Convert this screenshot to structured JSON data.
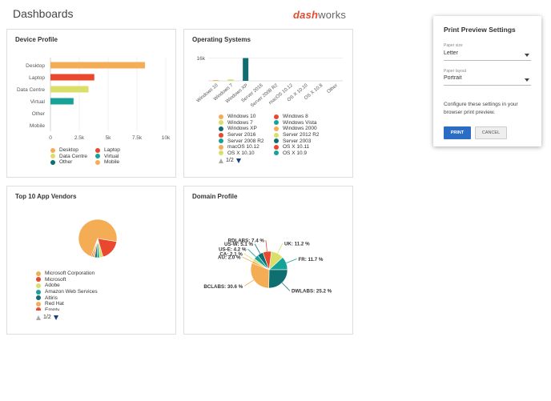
{
  "page": {
    "title": "Dashboards"
  },
  "logo": {
    "part1": "dash",
    "part2": "works"
  },
  "cards": {
    "device_profile": {
      "title": "Device Profile"
    },
    "operating_systems": {
      "title": "Operating Systems",
      "pager": "1/2"
    },
    "app_vendors": {
      "title": "Top 10 App Vendors",
      "pager": "1/2"
    },
    "domain_profile": {
      "title": "Domain Profile"
    }
  },
  "chart_data": [
    {
      "type": "bar",
      "orientation": "horizontal",
      "title": "Device Profile",
      "categories": [
        "Desktop",
        "Laptop",
        "Data Centre",
        "Virtual",
        "Other",
        "Mobile"
      ],
      "values": [
        8200,
        3800,
        3300,
        2000,
        0,
        0
      ],
      "colors": [
        "#f4ad54",
        "#e9472e",
        "#dadf6a",
        "#17a297",
        "#0f6e6f",
        "#f4ad54"
      ],
      "xlim": [
        0,
        10000
      ],
      "xticks": [
        "0",
        "2.5k",
        "5k",
        "7.5k",
        "10k"
      ],
      "legend": [
        {
          "label": "Desktop",
          "color": "#f4ad54"
        },
        {
          "label": "Laptop",
          "color": "#e9472e"
        },
        {
          "label": "Data Centre",
          "color": "#dadf6a"
        },
        {
          "label": "Virtual",
          "color": "#17a297"
        },
        {
          "label": "Other",
          "color": "#0f6e6f"
        },
        {
          "label": "Mobile",
          "color": "#f4ad54"
        }
      ]
    },
    {
      "type": "bar",
      "title": "Operating Systems",
      "categories": [
        "Windows 10",
        "Windows 7",
        "Windows XP",
        "Server 2016",
        "Server 2008 R2",
        "macOS 10.12",
        "OS X 10.10",
        "OS X 10.8",
        "Other"
      ],
      "values": [
        500,
        1000,
        16000,
        0,
        0,
        0,
        0,
        0,
        0
      ],
      "colors": [
        "#f4ad54",
        "#dadf6a",
        "#0f6e6f",
        "#e9472e",
        "#0f6e6f",
        "#f4ad54",
        "#dadf6a",
        "#17a297",
        "#0f6e6f"
      ],
      "ylim": [
        0,
        18000
      ],
      "yticks": [
        "16k"
      ],
      "legend": [
        {
          "label": "Windows 10",
          "color": "#f4ad54"
        },
        {
          "label": "Windows 8",
          "color": "#e9472e"
        },
        {
          "label": "Windows 7",
          "color": "#dadf6a"
        },
        {
          "label": "Windows Vista",
          "color": "#17a297"
        },
        {
          "label": "Windows XP",
          "color": "#0f6e6f"
        },
        {
          "label": "Windows 2000",
          "color": "#f4ad54"
        },
        {
          "label": "Server 2016",
          "color": "#e9472e"
        },
        {
          "label": "Server 2012 R2",
          "color": "#dadf6a"
        },
        {
          "label": "Server 2008 R2",
          "color": "#17a297"
        },
        {
          "label": "Server 2003",
          "color": "#0f6e6f"
        },
        {
          "label": "macOS 10.12",
          "color": "#f4ad54"
        },
        {
          "label": "OS X 10.11",
          "color": "#e9472e"
        },
        {
          "label": "OS X 10.10",
          "color": "#dadf6a"
        },
        {
          "label": "OS X 10.9",
          "color": "#17a297"
        }
      ]
    },
    {
      "type": "pie",
      "title": "Top 10 App Vendors",
      "slices": [
        {
          "label": "Microsoft Corporation",
          "value": 72,
          "color": "#f4ad54"
        },
        {
          "label": "Microsoft",
          "value": 18,
          "color": "#e9472e"
        },
        {
          "label": "Adobe",
          "value": 3,
          "color": "#dadf6a"
        },
        {
          "label": "Amazon Web Services",
          "value": 2,
          "color": "#17a297"
        },
        {
          "label": "Altiris",
          "value": 2,
          "color": "#0f6e6f"
        },
        {
          "label": "Red Hat",
          "value": 2,
          "color": "#f4ad54"
        },
        {
          "label": "Empty",
          "value": 1,
          "color": "#e9472e"
        }
      ]
    },
    {
      "type": "pie",
      "title": "Domain Profile",
      "slices": [
        {
          "label": "UK",
          "value": 11.2,
          "display": "UK: 11.2 %",
          "color": "#dadf6a"
        },
        {
          "label": "FR",
          "value": 11.7,
          "display": "FR: 11.7 %",
          "color": "#17a297"
        },
        {
          "label": "DWLABS",
          "value": 25.2,
          "display": "DWLABS: 25.2 %",
          "color": "#0f6e6f"
        },
        {
          "label": "BCLABS",
          "value": 30.6,
          "display": "BCLABS: 30.6 %",
          "color": "#f4ad54"
        },
        {
          "label": "AU",
          "value": 2.0,
          "display": "AU: 2.0 %",
          "color": "#f4ad54"
        },
        {
          "label": "CA",
          "value": 2.1,
          "display": "CA: 2.1 %",
          "color": "#dadf6a"
        },
        {
          "label": "US-E",
          "value": 4.2,
          "display": "US-E: 4.2 %",
          "color": "#17a297"
        },
        {
          "label": "US-W",
          "value": 5.1,
          "display": "US-W: 5.1 %",
          "color": "#0f6e6f"
        },
        {
          "label": "RDLABS",
          "value": 7.4,
          "display": "RDLABS: 7.4 %",
          "color": "#e9472e"
        }
      ]
    }
  ],
  "dialog": {
    "title": "Print Preview Settings",
    "paper_size_label": "Paper size",
    "paper_size_value": "Letter",
    "paper_layout_label": "Paper layout",
    "paper_layout_value": "Portrait",
    "description": "Configure these settings in your browser print preview.",
    "print_label": "PRINT",
    "cancel_label": "CANCEL"
  }
}
